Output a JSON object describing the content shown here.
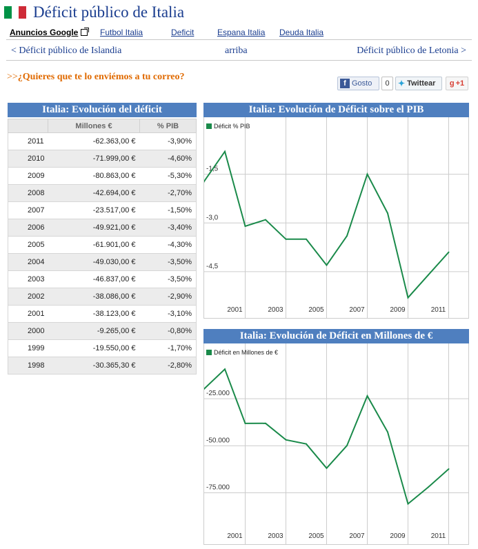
{
  "header": {
    "title": "Déficit público de Italia",
    "flag_colors": [
      "#009246",
      "#ffffff",
      "#ce2b37"
    ]
  },
  "ads": {
    "label": "Anuncios Google",
    "links": [
      "Futbol Italia",
      "Deficit",
      "Espana Italia",
      "Deuda Italia"
    ]
  },
  "nav": {
    "prev": "< Déficit público de Islandia",
    "up": "arriba",
    "next": "Déficit público de Letonia >"
  },
  "subscribe": {
    "arrows": ">>",
    "text": "¿Quieres que te lo enviémos a tu correo?"
  },
  "social": {
    "like_label": "Gosto",
    "like_count": "0",
    "tweet_label": "Twittear",
    "gplus_label": "+1"
  },
  "table": {
    "title": "Italia: Evolución del déficit",
    "headers": [
      "",
      "Millones €",
      "% PIB"
    ],
    "rows": [
      [
        "2011",
        "-62.363,00 €",
        "-3,90%"
      ],
      [
        "2010",
        "-71.999,00 €",
        "-4,60%"
      ],
      [
        "2009",
        "-80.863,00 €",
        "-5,30%"
      ],
      [
        "2008",
        "-42.694,00 €",
        "-2,70%"
      ],
      [
        "2007",
        "-23.517,00 €",
        "-1,50%"
      ],
      [
        "2006",
        "-49.921,00 €",
        "-3,40%"
      ],
      [
        "2005",
        "-61.901,00 €",
        "-4,30%"
      ],
      [
        "2004",
        "-49.030,00 €",
        "-3,50%"
      ],
      [
        "2003",
        "-46.837,00 €",
        "-3,50%"
      ],
      [
        "2002",
        "-38.086,00 €",
        "-2,90%"
      ],
      [
        "2001",
        "-38.123,00 €",
        "-3,10%"
      ],
      [
        "2000",
        "-9.265,00 €",
        "-0,80%"
      ],
      [
        "1999",
        "-19.550,00 €",
        "-1,70%"
      ],
      [
        "1998",
        "-30.365,30 €",
        "-2,80%"
      ]
    ]
  },
  "chart_data": [
    {
      "type": "line",
      "title": "Italia: Evolución de Déficit sobre el PIB",
      "legend": "top-left",
      "color": "#1a8a4a",
      "x": [
        1998,
        1999,
        2000,
        2001,
        2002,
        2003,
        2004,
        2005,
        2006,
        2007,
        2008,
        2009,
        2010,
        2011
      ],
      "x_tick_labels": [
        "2001",
        "2003",
        "2005",
        "2007",
        "2009",
        "2011"
      ],
      "y_tick_labels": [
        "-1,5",
        "-3,0",
        "-4,5"
      ],
      "ylim": [
        -5.5,
        0
      ],
      "grid": true,
      "series": [
        {
          "name": "Déficit % PIB",
          "values": [
            -2.8,
            -1.7,
            -0.8,
            -3.1,
            -2.9,
            -3.5,
            -3.5,
            -4.3,
            -3.4,
            -1.5,
            -2.7,
            -5.3,
            -4.6,
            -3.9
          ]
        }
      ]
    },
    {
      "type": "line",
      "title": "Italia: Evolución de Déficit en Millones de €",
      "legend": "top-left",
      "color": "#1a8a4a",
      "x": [
        1998,
        1999,
        2000,
        2001,
        2002,
        2003,
        2004,
        2005,
        2006,
        2007,
        2008,
        2009,
        2010,
        2011
      ],
      "x_tick_labels": [
        "2001",
        "2003",
        "2005",
        "2007",
        "2009",
        "2011"
      ],
      "y_tick_labels": [
        "-25.000",
        "-50.000",
        "-75.000"
      ],
      "ylim": [
        -95000,
        0
      ],
      "grid": true,
      "series": [
        {
          "name": "Déficit en Millones de €",
          "values": [
            -30365.3,
            -19550,
            -9265,
            -38123,
            -38086,
            -46837,
            -49030,
            -61901,
            -49921,
            -23517,
            -42694,
            -80863,
            -71999,
            -62363
          ]
        }
      ]
    }
  ]
}
